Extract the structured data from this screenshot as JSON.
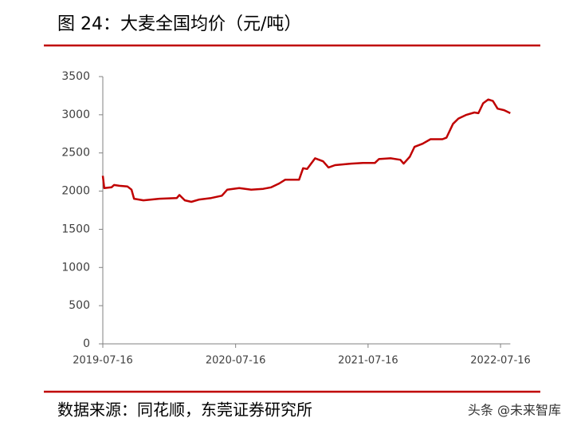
{
  "title": "图 24：大麦全国均价（元/吨）",
  "source": "数据来源：同花顺，东莞证券研究所",
  "watermark": "头条 @未来智库",
  "chart_data": {
    "type": "line",
    "x": [
      "2019-07-16",
      "2019-07-20",
      "2019-08-09",
      "2019-08-16",
      "2019-08-31",
      "2019-09-22",
      "2019-10-03",
      "2019-10-10",
      "2019-11-05",
      "2019-12-19",
      "2020-02-05",
      "2020-02-12",
      "2020-02-27",
      "2020-03-16",
      "2020-04-07",
      "2020-05-10",
      "2020-06-08",
      "2020-06-23",
      "2020-07-26",
      "2020-08-28",
      "2020-09-30",
      "2020-10-22",
      "2020-11-13",
      "2020-11-30",
      "2021-01-07",
      "2021-01-18",
      "2021-01-29",
      "2021-02-20",
      "2021-03-14",
      "2021-03-29",
      "2021-04-16",
      "2021-05-30",
      "2021-07-02",
      "2021-08-04",
      "2021-08-15",
      "2021-09-16",
      "2021-10-13",
      "2021-10-22",
      "2021-11-08",
      "2021-11-21",
      "2021-12-13",
      "2022-01-04",
      "2022-02-06",
      "2022-02-17",
      "2022-03-07",
      "2022-03-22",
      "2022-04-13",
      "2022-05-05",
      "2022-05-16",
      "2022-05-29",
      "2022-06-12",
      "2022-06-25",
      "2022-07-08",
      "2022-07-26",
      "2022-08-12"
    ],
    "series": [
      {
        "color": "#c00000",
        "values": [
          2200,
          2040,
          2050,
          2080,
          2070,
          2060,
          2020,
          1900,
          1880,
          1900,
          1910,
          1950,
          1880,
          1860,
          1890,
          1910,
          1940,
          2020,
          2040,
          2020,
          2030,
          2050,
          2100,
          2150,
          2150,
          2300,
          2290,
          2430,
          2390,
          2310,
          2340,
          2360,
          2370,
          2370,
          2420,
          2430,
          2410,
          2360,
          2450,
          2580,
          2620,
          2680,
          2680,
          2700,
          2880,
          2950,
          3000,
          3030,
          3020,
          3150,
          3200,
          3180,
          3080,
          3060,
          3020
        ]
      }
    ],
    "xlim": [
      "2019-07-16",
      "2022-08-12"
    ],
    "xticks": [
      "2019-07-16",
      "2020-07-16",
      "2021-07-16",
      "2022-07-16"
    ],
    "ylim": [
      0,
      3500
    ],
    "yticks": [
      0,
      500,
      1000,
      1500,
      2000,
      2500,
      3000,
      3500
    ]
  }
}
